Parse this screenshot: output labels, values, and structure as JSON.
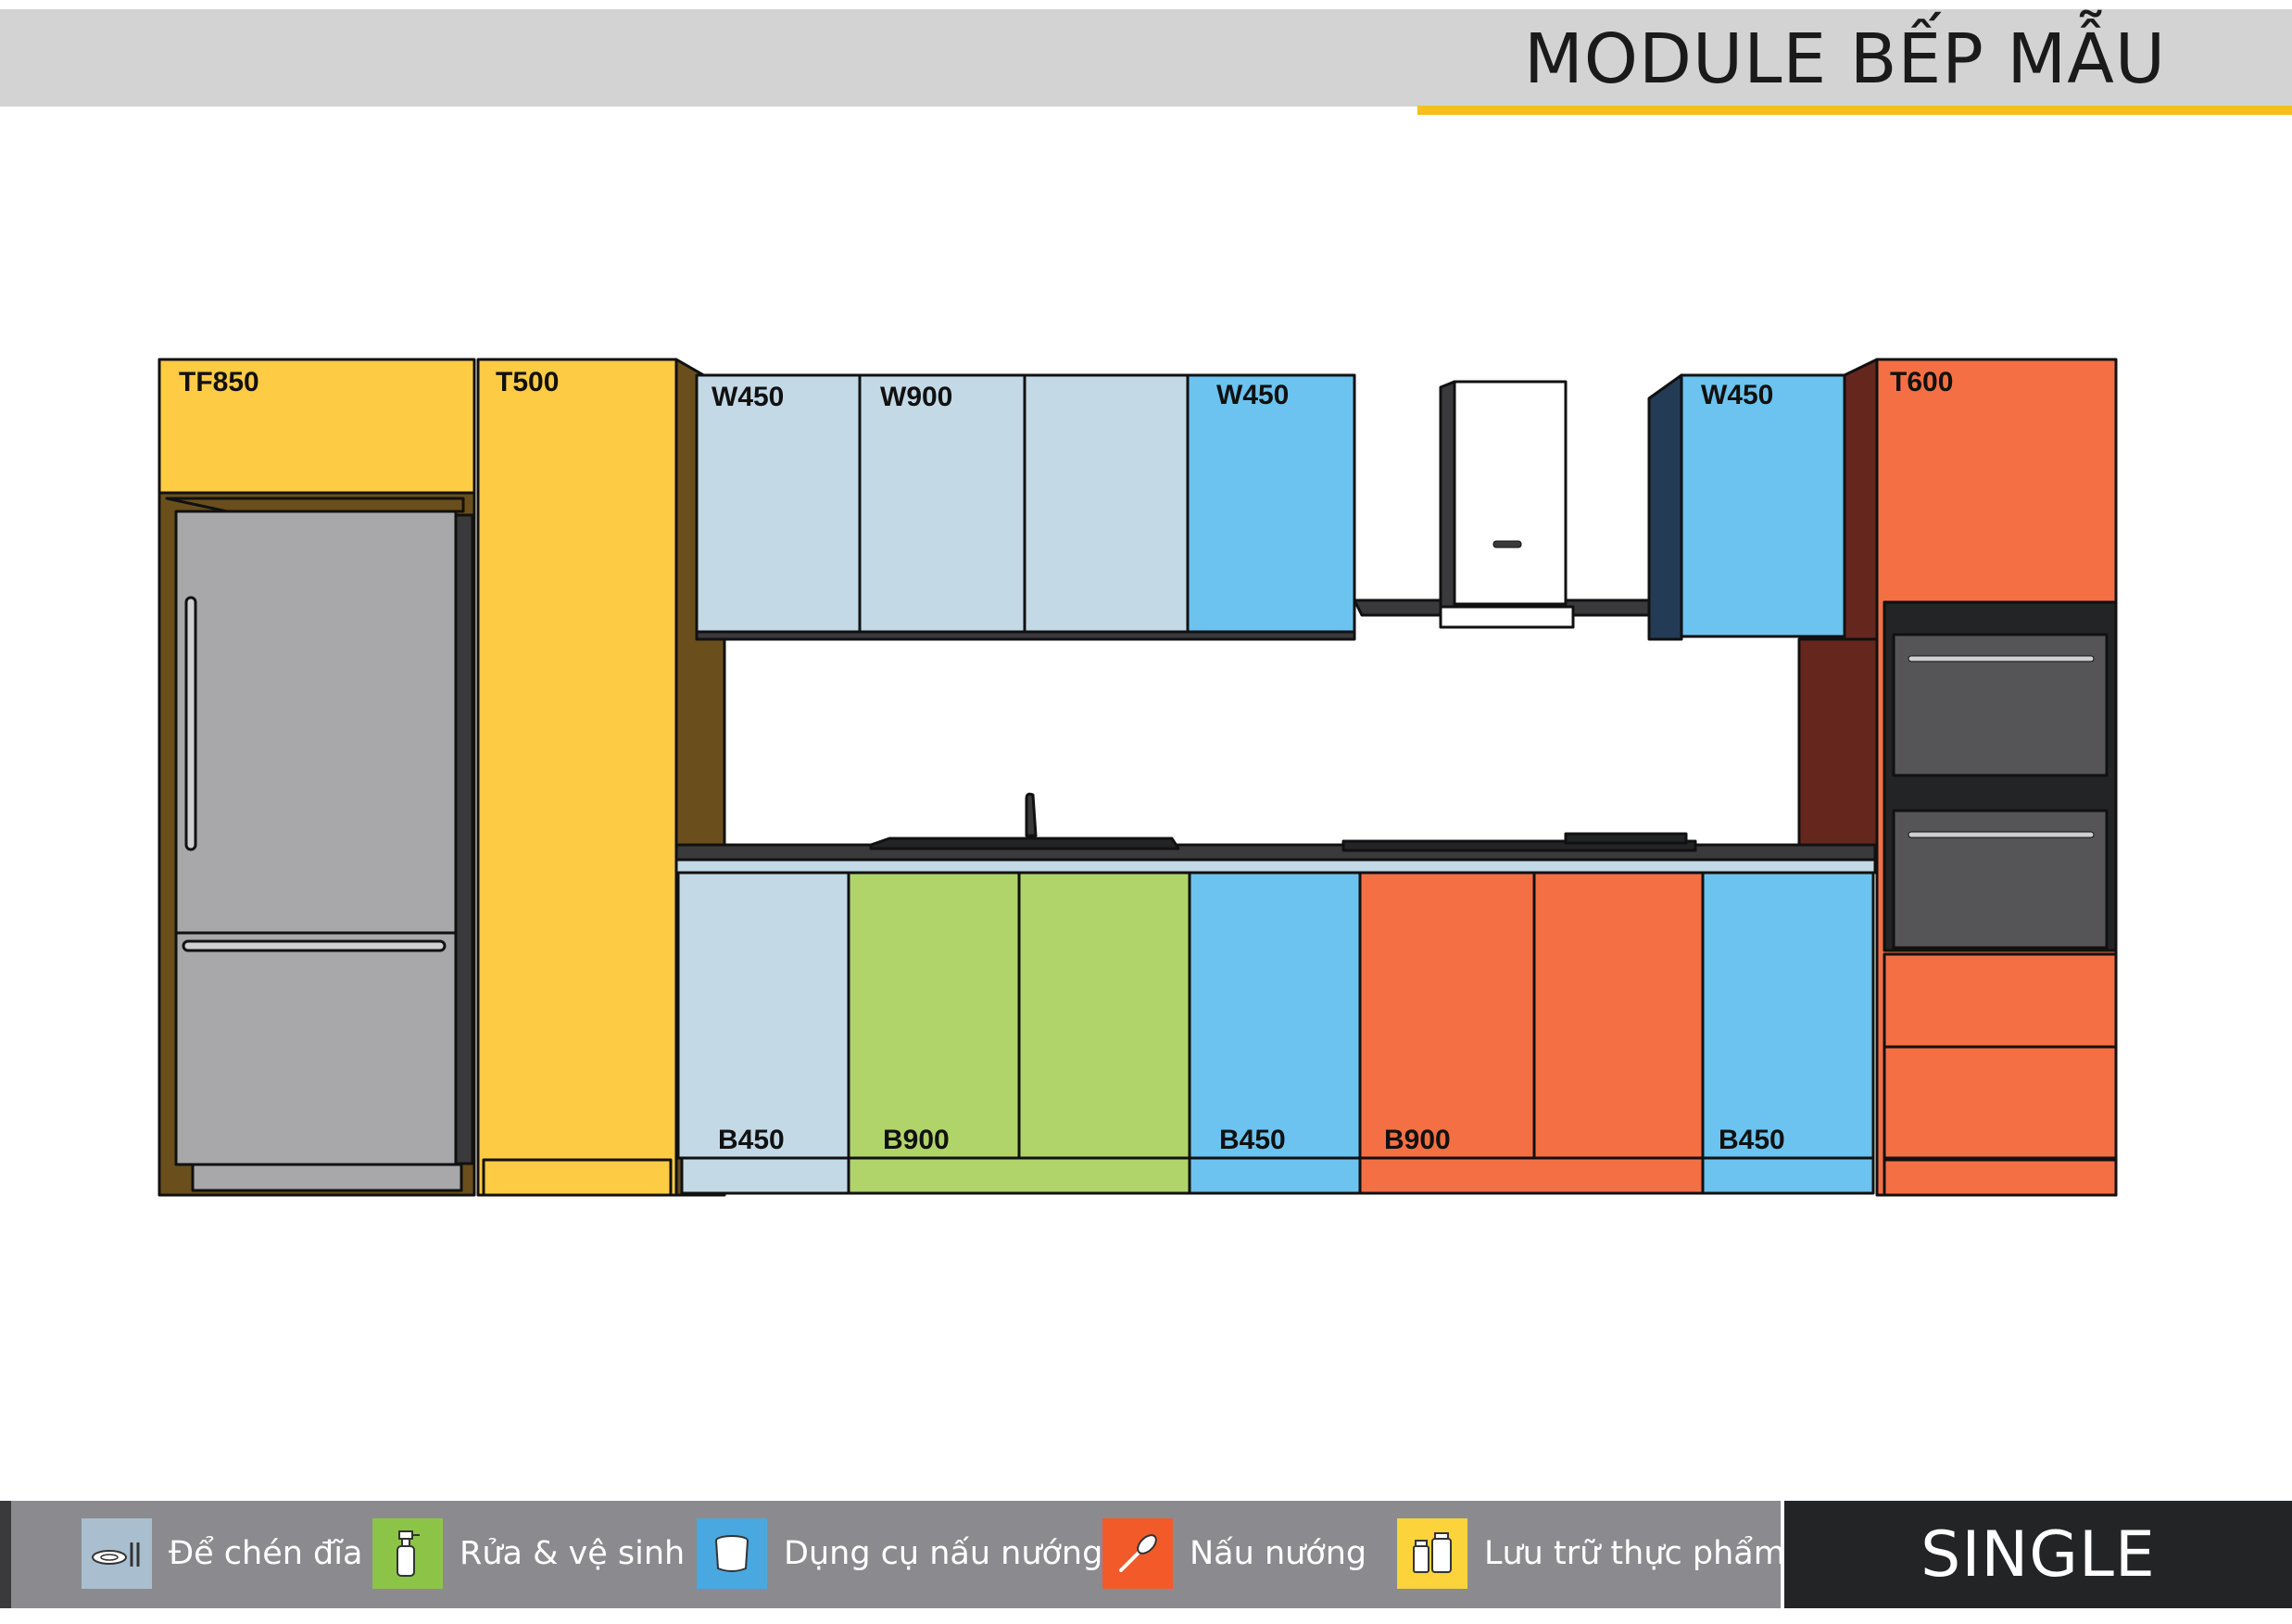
{
  "header": {
    "title": "MODULE BẾP MẪU"
  },
  "colors": {
    "dish_storage": "#c3d9e6",
    "washing": "#b0d46a",
    "cooking_tools": "#6cc3ef",
    "cooking": "#f56f45",
    "food_storage": "#fecb45",
    "accent": "#f5bf1d"
  },
  "modules": {
    "tf850": "TF850",
    "t500": "T500",
    "w450_a": "W450",
    "w900": "W900",
    "w450_b": "W450",
    "w450_c": "W450",
    "t600": "T600",
    "b450_a": "B450",
    "b900_a": "B900",
    "b450_b": "B450",
    "b900_b": "B900",
    "b450_c": "B450"
  },
  "legend": [
    {
      "label": "Để chén đĩa",
      "icon": "dish-icon",
      "color": "#a9bfd0"
    },
    {
      "label": "Rửa & vệ sinh",
      "icon": "spray-bottle-icon",
      "color": "#8cc448"
    },
    {
      "label": "Dụng cụ nấu nướng",
      "icon": "pot-icon",
      "color": "#4aa8e0"
    },
    {
      "label": "Nấu nướng",
      "icon": "whisk-icon",
      "color": "#f25a2a"
    },
    {
      "label": "Lưu trữ thực phẩm",
      "icon": "jars-icon",
      "color": "#fcd33a"
    }
  ],
  "badge": {
    "label": "SINGLE"
  }
}
